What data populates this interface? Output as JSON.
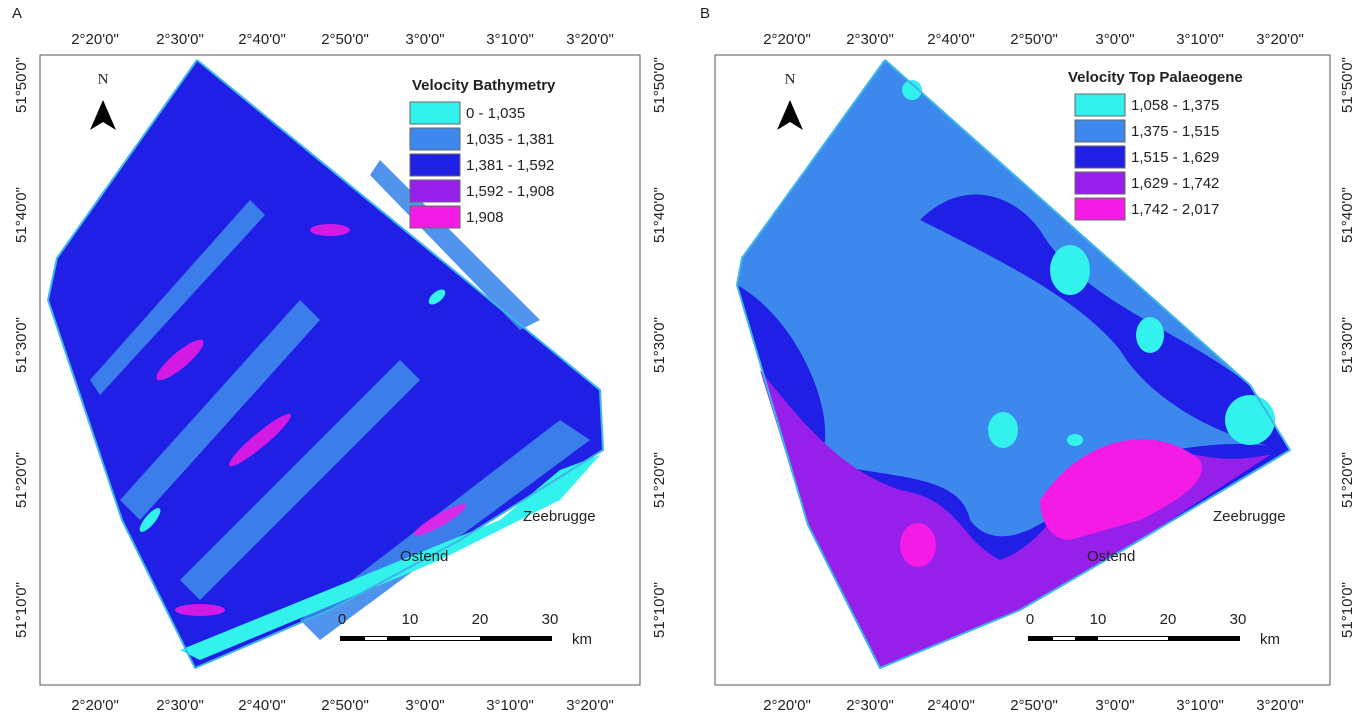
{
  "panels": [
    {
      "letter": "A",
      "north": "N",
      "legend": {
        "title": "Velocity Bathymetry",
        "items": [
          {
            "label": "0 - 1,035",
            "color": "#33f2ee"
          },
          {
            "label": "1,035 - 1,381",
            "color": "#3d88ec"
          },
          {
            "label": "1,381 - 1,592",
            "color": "#1f1fe6"
          },
          {
            "label": "1,592 - 1,908",
            "color": "#9620ea"
          },
          {
            "label": "1,908",
            "color": "#f51be6"
          }
        ]
      },
      "lon_top": [
        "2°20'0\"",
        "2°30'0\"",
        "2°40'0\"",
        "2°50'0\"",
        "3°0'0\"",
        "3°10'0\"",
        "3°20'0\""
      ],
      "lon_bottom": [
        "2°20'0\"",
        "2°30'0\"",
        "2°40'0\"",
        "2°50'0\"",
        "3°0'0\"",
        "3°10'0\"",
        "3°20'0\""
      ],
      "lat_left": [
        "51°50'0\"",
        "51°40'0\"",
        "51°30'0\"",
        "51°20'0\"",
        "51°10'0\""
      ],
      "lat_right": [
        "51°50'0\"",
        "51°40'0\"",
        "51°30'0\"",
        "51°20'0\"",
        "51°10'0\""
      ],
      "places": [
        "Zeebrugge",
        "Ostend"
      ],
      "scale": {
        "labels": [
          "0",
          "10",
          "20",
          "30"
        ],
        "unit": "km"
      }
    },
    {
      "letter": "B",
      "north": "N",
      "legend": {
        "title": "Velocity Top Palaeogene",
        "items": [
          {
            "label": "1,058 - 1,375",
            "color": "#33f2ee"
          },
          {
            "label": "1,375 - 1,515",
            "color": "#3d88ec"
          },
          {
            "label": "1,515 - 1,629",
            "color": "#1f1fe6"
          },
          {
            "label": "1,629 - 1,742",
            "color": "#9620ea"
          },
          {
            "label": "1,742 - 2,017",
            "color": "#f51be6"
          }
        ]
      },
      "lon_top": [
        "2°20'0\"",
        "2°30'0\"",
        "2°40'0\"",
        "2°50'0\"",
        "3°0'0\"",
        "3°10'0\"",
        "3°20'0\""
      ],
      "lon_bottom": [
        "2°20'0\"",
        "2°30'0\"",
        "2°40'0\"",
        "2°50'0\"",
        "3°0'0\"",
        "3°10'0\"",
        "3°20'0\""
      ],
      "lat_right": [
        "51°50'0\"",
        "51°40'0\"",
        "51°30'0\"",
        "51°20'0\"",
        "51°10'0\""
      ],
      "places": [
        "Zeebrugge",
        "Ostend"
      ],
      "scale": {
        "labels": [
          "0",
          "10",
          "20",
          "30"
        ],
        "unit": "km"
      }
    }
  ]
}
